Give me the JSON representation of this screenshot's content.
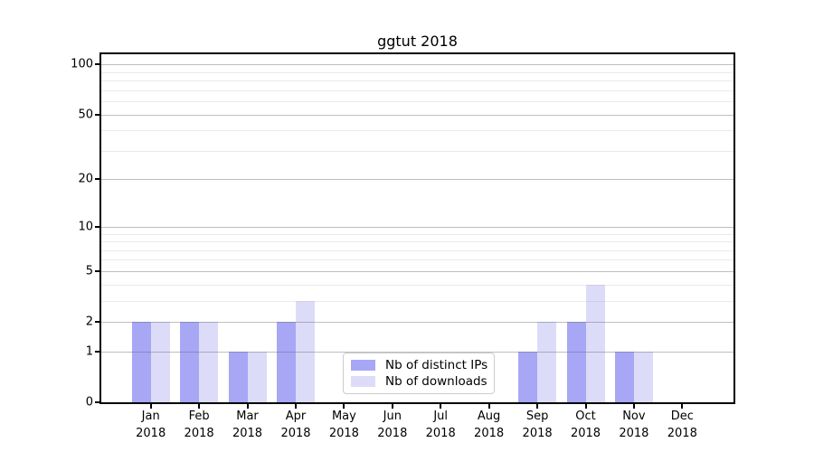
{
  "chart_data": {
    "type": "bar",
    "title": "ggtut 2018",
    "year": "2018",
    "categories": [
      "Jan",
      "Feb",
      "Mar",
      "Apr",
      "May",
      "Jun",
      "Jul",
      "Aug",
      "Sep",
      "Oct",
      "Nov",
      "Dec"
    ],
    "series": [
      {
        "name": "Nb of distinct IPs",
        "color": "#a7a7f6",
        "values": [
          2,
          2,
          1,
          2,
          0,
          0,
          0,
          0,
          1,
          2,
          1,
          0
        ]
      },
      {
        "name": "Nb of downloads",
        "color": "#dcdcf9",
        "values": [
          2,
          2,
          1,
          3,
          0,
          0,
          0,
          0,
          2,
          4,
          1,
          0
        ]
      }
    ],
    "y_major_ticks": [
      0,
      1,
      2,
      5,
      10,
      20,
      50,
      100
    ],
    "y_minor_ticks": [
      3,
      4,
      6,
      7,
      8,
      9,
      30,
      40,
      60,
      70,
      80,
      90
    ],
    "scale": "log1p",
    "ylim": [
      0,
      115
    ],
    "xlabel": "",
    "ylabel": "",
    "grid": true,
    "legend_position": "bottom-center"
  }
}
